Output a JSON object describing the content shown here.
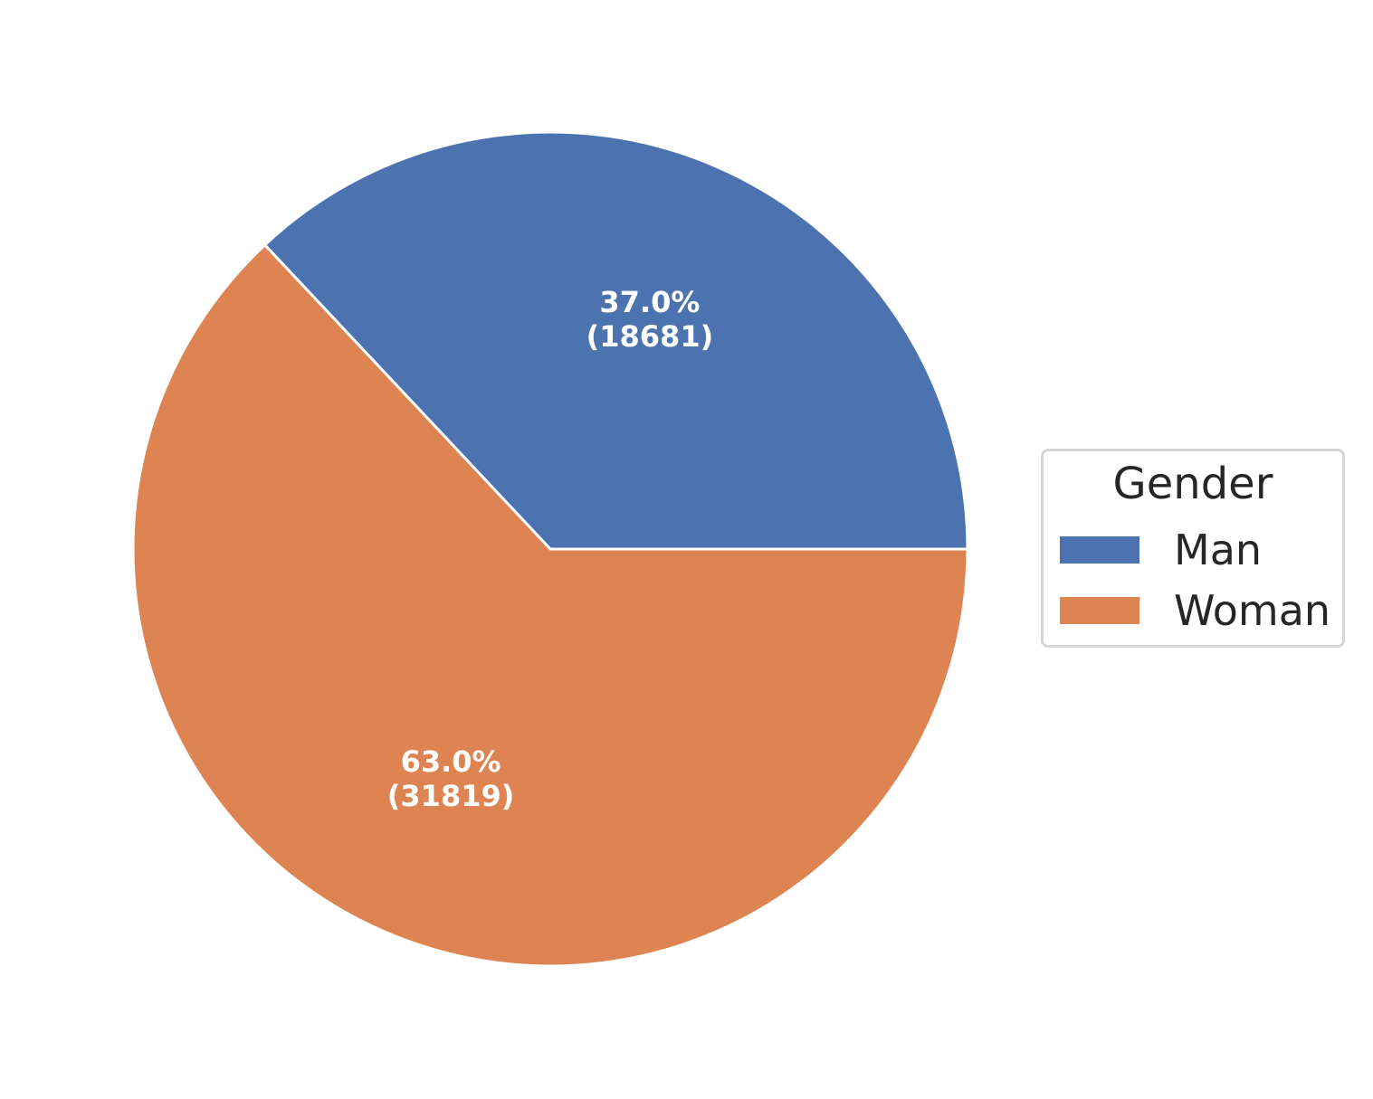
{
  "chart_data": {
    "type": "pie",
    "title": "",
    "legend": {
      "title": "Gender",
      "placement": "center-right"
    },
    "slices": [
      {
        "label": "Man",
        "value": 18681,
        "percent": "37.0%",
        "count_text": "(18681)",
        "color": "#4c72b0"
      },
      {
        "label": "Woman",
        "value": 31819,
        "percent": "63.0%",
        "count_text": "(31819)",
        "color": "#dd8452"
      }
    ]
  }
}
